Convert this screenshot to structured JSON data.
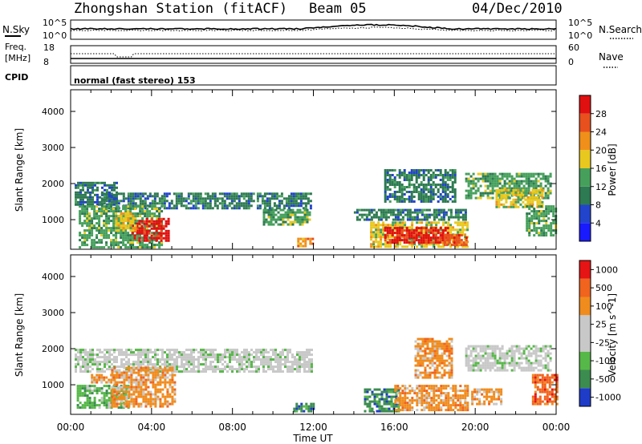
{
  "header": {
    "station": "Zhongshan Station (fitACF)",
    "beam": "Beam 05",
    "date": "04/Dec/2010"
  },
  "noise_panel": {
    "left_label": "N.Sky",
    "left_ticks": [
      "10^5",
      "10^0"
    ],
    "right_label": "N.Search",
    "right_ticks": [
      "10^5",
      "10^0"
    ]
  },
  "freq_panel": {
    "left_label_1": "Freq.",
    "left_label_2": "[MHz]",
    "left_ticks": [
      "18",
      "8"
    ],
    "right_label": "Nave",
    "right_ticks": [
      "60",
      "0"
    ]
  },
  "cpid": {
    "label": "CPID",
    "text": "normal (fast stereo) 153"
  },
  "colors": {
    "power_scale": [
      "#1a1aff",
      "#2244cc",
      "#2e7a52",
      "#46a05c",
      "#e8c81e",
      "#f0901a",
      "#e8501e",
      "#e01010"
    ],
    "velocity_scale": [
      "#1e3cc8",
      "#3c8c50",
      "#56b848",
      "#c8c8c8",
      "#c8c8c8",
      "#f08c1e",
      "#f0641e",
      "#e61414"
    ]
  },
  "chart_data": [
    {
      "type": "heatmap",
      "name": "power",
      "xlabel": "",
      "ylabel": "Slant Range [km]",
      "xlim": [
        0,
        24
      ],
      "ylim": [
        180,
        4600
      ],
      "yticks": [
        1000,
        2000,
        3000,
        4000
      ],
      "colorbar": {
        "label": "Power [dB]",
        "ticks": [
          "4",
          "8",
          "12",
          "16",
          "20",
          "24",
          "28"
        ],
        "range": [
          0,
          32
        ]
      },
      "blobs": [
        {
          "x0": 0.2,
          "x1": 2.3,
          "y0": 1450,
          "y1": 2050,
          "level": 2
        },
        {
          "x0": 1.5,
          "x1": 9.0,
          "y0": 1350,
          "y1": 1750,
          "level": 2
        },
        {
          "x0": 9.2,
          "x1": 11.9,
          "y0": 1350,
          "y1": 1750,
          "level": 2
        },
        {
          "x0": 0.4,
          "x1": 4.5,
          "y0": 250,
          "y1": 1400,
          "level": 3
        },
        {
          "x0": 3.0,
          "x1": 4.8,
          "y0": 450,
          "y1": 1050,
          "level": 7
        },
        {
          "x0": 2.2,
          "x1": 3.2,
          "y0": 700,
          "y1": 1200,
          "level": 4
        },
        {
          "x0": 9.5,
          "x1": 11.8,
          "y0": 900,
          "y1": 1300,
          "level": 3
        },
        {
          "x0": 11.2,
          "x1": 12.0,
          "y0": 280,
          "y1": 500,
          "level": 5
        },
        {
          "x0": 14.8,
          "x1": 19.6,
          "y0": 280,
          "y1": 950,
          "level": 4
        },
        {
          "x0": 15.5,
          "x1": 18.6,
          "y0": 400,
          "y1": 800,
          "level": 7
        },
        {
          "x0": 18.2,
          "x1": 19.6,
          "y0": 280,
          "y1": 600,
          "level": 6
        },
        {
          "x0": 14.0,
          "x1": 19.5,
          "y0": 1000,
          "y1": 1300,
          "level": 2
        },
        {
          "x0": 15.5,
          "x1": 19.0,
          "y0": 1500,
          "y1": 2400,
          "level": 2
        },
        {
          "x0": 19.5,
          "x1": 23.7,
          "y0": 1600,
          "y1": 2300,
          "level": 3
        },
        {
          "x0": 21.0,
          "x1": 23.3,
          "y0": 1350,
          "y1": 1850,
          "level": 4
        },
        {
          "x0": 22.5,
          "x1": 24.0,
          "y0": 600,
          "y1": 1400,
          "level": 3
        }
      ]
    },
    {
      "type": "heatmap",
      "name": "velocity",
      "xlabel": "Time UT",
      "ylabel": "Slant Range [km]",
      "xlim": [
        0,
        24
      ],
      "ylim": [
        180,
        4600
      ],
      "yticks": [
        1000,
        2000,
        3000,
        4000
      ],
      "xticks": [
        "00:00",
        "04:00",
        "08:00",
        "12:00",
        "16:00",
        "20:00",
        "00:00"
      ],
      "colorbar": {
        "label": "Velocity [m s^-1]",
        "ticks": [
          "1000",
          "500",
          "100",
          "25",
          "-25",
          "-100",
          "-500",
          "-1000"
        ]
      },
      "blobs": [
        {
          "x0": 0.2,
          "x1": 11.9,
          "y0": 1350,
          "y1": 2000,
          "level": 3
        },
        {
          "x0": 0.3,
          "x1": 2.8,
          "y0": 350,
          "y1": 1000,
          "level": 2
        },
        {
          "x0": 2.0,
          "x1": 5.2,
          "y0": 400,
          "y1": 1500,
          "level": 5
        },
        {
          "x0": 1.0,
          "x1": 2.2,
          "y0": 1100,
          "y1": 1300,
          "level": 5
        },
        {
          "x0": 11.0,
          "x1": 12.0,
          "y0": 280,
          "y1": 500,
          "level": 1
        },
        {
          "x0": 14.5,
          "x1": 16.2,
          "y0": 300,
          "y1": 900,
          "level": 1
        },
        {
          "x0": 16.0,
          "x1": 19.6,
          "y0": 280,
          "y1": 1000,
          "level": 5
        },
        {
          "x0": 17.0,
          "x1": 18.8,
          "y0": 1200,
          "y1": 2300,
          "level": 5
        },
        {
          "x0": 19.5,
          "x1": 23.7,
          "y0": 1400,
          "y1": 2100,
          "level": 3
        },
        {
          "x0": 19.8,
          "x1": 21.3,
          "y0": 500,
          "y1": 900,
          "level": 5
        },
        {
          "x0": 22.8,
          "x1": 24.0,
          "y0": 500,
          "y1": 1300,
          "level": 6
        }
      ]
    }
  ]
}
